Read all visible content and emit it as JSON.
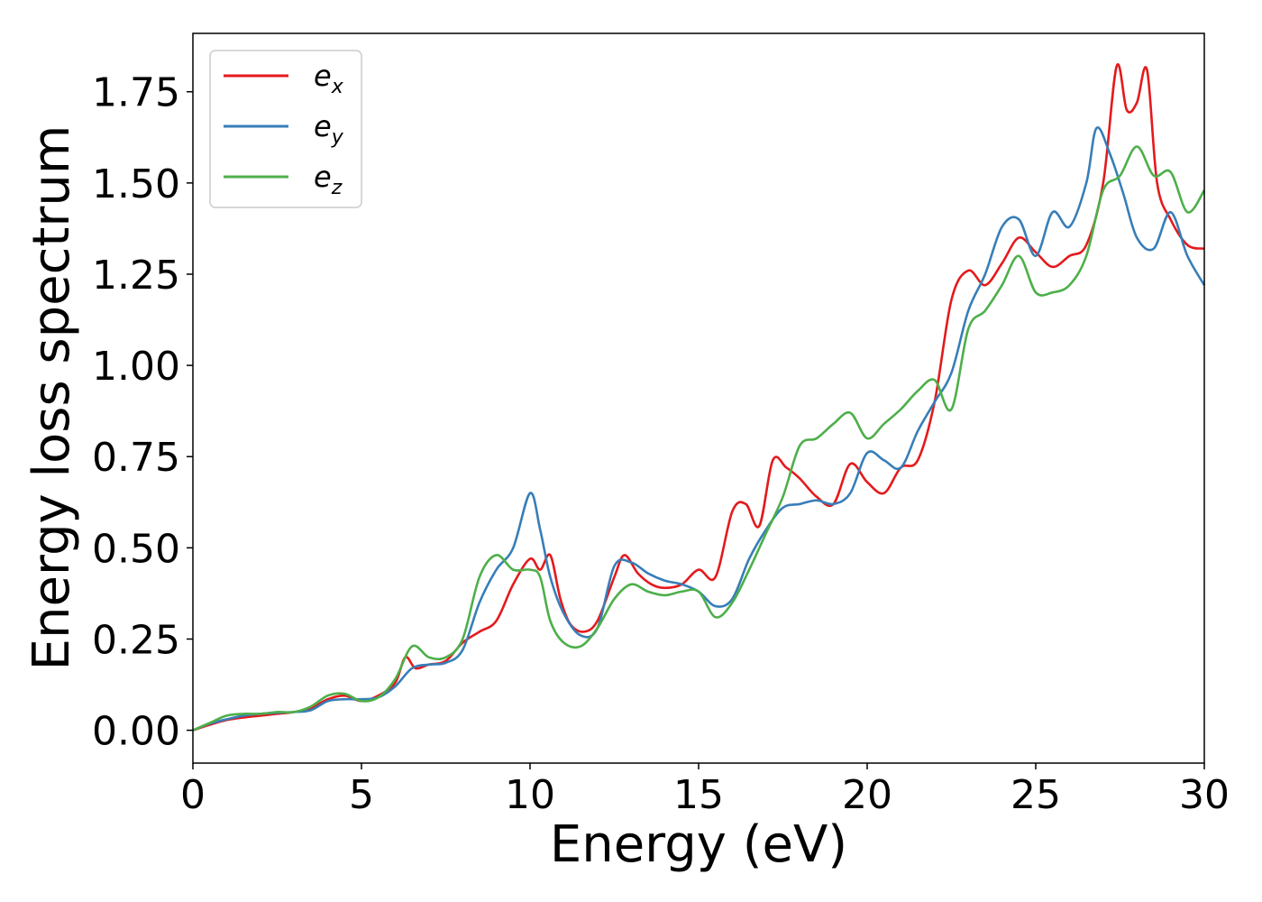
{
  "chart_data": {
    "type": "line",
    "xlabel": "Energy (eV)",
    "ylabel": "Energy loss spectrum",
    "xlim": [
      0,
      30
    ],
    "ylim": [
      -0.09,
      1.91
    ],
    "x_ticks": [
      0,
      5,
      10,
      15,
      20,
      25,
      30
    ],
    "x_tick_labels": [
      "0",
      "5",
      "10",
      "15",
      "20",
      "25",
      "30"
    ],
    "y_ticks": [
      0.0,
      0.25,
      0.5,
      0.75,
      1.0,
      1.25,
      1.5,
      1.75
    ],
    "y_tick_labels": [
      "0.00",
      "0.25",
      "0.50",
      "0.75",
      "1.00",
      "1.25",
      "1.50",
      "1.75"
    ],
    "grid": false,
    "legend_position": "top-left",
    "series": [
      {
        "name": "e_x",
        "legend_base": "e",
        "legend_sub": "x",
        "color": "#e41a1c",
        "x": [
          0,
          0.5,
          1,
          1.5,
          2,
          2.5,
          3,
          3.5,
          4,
          4.5,
          5,
          5.5,
          6,
          6.3,
          6.6,
          7,
          7.5,
          8,
          8.5,
          9,
          9.5,
          10,
          10.3,
          10.6,
          10.9,
          11.2,
          11.6,
          12,
          12.5,
          12.8,
          13.2,
          13.6,
          14,
          14.5,
          15,
          15.5,
          16,
          16.4,
          16.8,
          17.2,
          17.6,
          18,
          18.5,
          19,
          19.5,
          20,
          20.5,
          21,
          21.5,
          22,
          22.5,
          23,
          23.5,
          24,
          24.5,
          25,
          25.5,
          26,
          26.5,
          27,
          27.4,
          27.7,
          28,
          28.3,
          28.6,
          29,
          29.5,
          30
        ],
        "y": [
          0,
          0.015,
          0.028,
          0.035,
          0.04,
          0.045,
          0.05,
          0.06,
          0.085,
          0.095,
          0.08,
          0.095,
          0.13,
          0.2,
          0.17,
          0.18,
          0.19,
          0.24,
          0.27,
          0.3,
          0.4,
          0.47,
          0.44,
          0.48,
          0.36,
          0.29,
          0.27,
          0.3,
          0.42,
          0.48,
          0.43,
          0.4,
          0.39,
          0.4,
          0.44,
          0.42,
          0.6,
          0.62,
          0.56,
          0.74,
          0.72,
          0.69,
          0.64,
          0.62,
          0.73,
          0.68,
          0.65,
          0.72,
          0.74,
          0.9,
          1.18,
          1.26,
          1.22,
          1.28,
          1.35,
          1.31,
          1.27,
          1.3,
          1.33,
          1.5,
          1.82,
          1.7,
          1.72,
          1.81,
          1.5,
          1.4,
          1.33,
          1.32
        ]
      },
      {
        "name": "e_y",
        "legend_base": "e",
        "legend_sub": "y",
        "color": "#377eb8",
        "x": [
          0,
          0.5,
          1,
          1.5,
          2,
          2.5,
          3,
          3.5,
          4,
          4.5,
          5,
          5.5,
          6,
          6.5,
          7,
          7.5,
          8,
          8.5,
          9,
          9.5,
          10,
          10.3,
          10.6,
          11,
          11.5,
          12,
          12.5,
          13,
          13.5,
          14,
          14.5,
          15,
          15.5,
          16,
          16.5,
          17,
          17.5,
          18,
          18.5,
          19,
          19.5,
          20,
          20.5,
          21,
          21.5,
          22,
          22.5,
          23,
          23.5,
          24,
          24.5,
          25,
          25.5,
          26,
          26.5,
          26.8,
          27.2,
          27.6,
          28,
          28.5,
          29,
          29.5,
          30
        ],
        "y": [
          0,
          0.018,
          0.03,
          0.04,
          0.045,
          0.048,
          0.05,
          0.055,
          0.08,
          0.085,
          0.085,
          0.09,
          0.12,
          0.17,
          0.18,
          0.185,
          0.22,
          0.35,
          0.44,
          0.5,
          0.65,
          0.55,
          0.42,
          0.32,
          0.26,
          0.28,
          0.45,
          0.46,
          0.43,
          0.41,
          0.4,
          0.38,
          0.34,
          0.36,
          0.47,
          0.55,
          0.61,
          0.62,
          0.63,
          0.62,
          0.65,
          0.76,
          0.74,
          0.72,
          0.82,
          0.9,
          0.98,
          1.15,
          1.25,
          1.38,
          1.4,
          1.3,
          1.42,
          1.38,
          1.5,
          1.65,
          1.58,
          1.47,
          1.35,
          1.32,
          1.42,
          1.3,
          1.22
        ]
      },
      {
        "name": "e_z",
        "legend_base": "e",
        "legend_sub": "z",
        "color": "#4daf4a",
        "x": [
          0,
          0.5,
          1,
          1.5,
          2,
          2.5,
          3,
          3.5,
          4,
          4.5,
          5,
          5.5,
          6,
          6.5,
          7,
          7.5,
          8,
          8.5,
          9,
          9.5,
          10,
          10.3,
          10.6,
          11,
          11.5,
          12,
          12.5,
          13,
          13.5,
          14,
          14.5,
          15,
          15.5,
          16,
          16.5,
          17,
          17.5,
          18,
          18.5,
          19,
          19.5,
          20,
          20.5,
          21,
          21.5,
          22,
          22.5,
          23,
          23.5,
          24,
          24.5,
          25,
          25.5,
          26,
          26.5,
          27,
          27.5,
          28,
          28.5,
          29,
          29.5,
          30
        ],
        "y": [
          0,
          0.02,
          0.04,
          0.045,
          0.045,
          0.05,
          0.05,
          0.065,
          0.095,
          0.1,
          0.08,
          0.09,
          0.14,
          0.23,
          0.2,
          0.2,
          0.25,
          0.42,
          0.48,
          0.44,
          0.44,
          0.42,
          0.3,
          0.24,
          0.23,
          0.28,
          0.36,
          0.4,
          0.38,
          0.37,
          0.38,
          0.38,
          0.31,
          0.35,
          0.44,
          0.54,
          0.64,
          0.78,
          0.8,
          0.84,
          0.87,
          0.8,
          0.84,
          0.88,
          0.93,
          0.96,
          0.88,
          1.1,
          1.15,
          1.22,
          1.3,
          1.2,
          1.2,
          1.22,
          1.3,
          1.48,
          1.52,
          1.6,
          1.52,
          1.53,
          1.42,
          1.48
        ]
      }
    ]
  }
}
